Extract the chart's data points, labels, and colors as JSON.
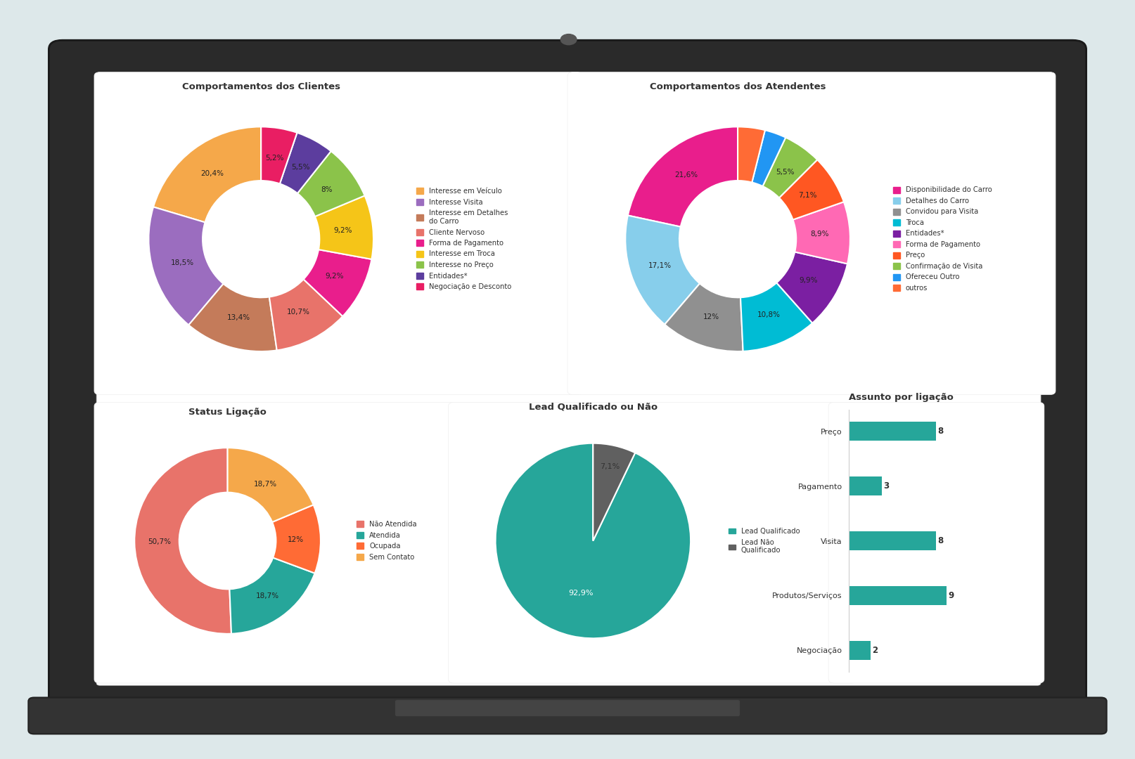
{
  "bg_color": "#dde8ea",
  "chart1_title": "Comportamentos dos Clientes",
  "chart1_values": [
    20.4,
    18.5,
    13.4,
    10.7,
    9.2,
    9.2,
    8.0,
    5.5,
    5.2
  ],
  "chart1_colors": [
    "#F5A84A",
    "#9B6DBF",
    "#C47B5A",
    "#E8736A",
    "#E91E8C",
    "#F5C518",
    "#8BC34A",
    "#5C3D9E",
    "#E91E63"
  ],
  "chart1_labels": [
    "20,4%",
    "18,5%",
    "13,4%",
    "10,7%",
    "9,2%",
    "9,2%",
    "8%",
    "5,5%",
    "5,2%"
  ],
  "chart1_legend": [
    {
      "label": "Interesse em Veículo",
      "color": "#F5A84A"
    },
    {
      "label": "Interesse Visita",
      "color": "#9B6DBF"
    },
    {
      "label": "Interesse em Detalhes\ndo Carro",
      "color": "#C47B5A"
    },
    {
      "label": "Cliente Nervoso",
      "color": "#E8736A"
    },
    {
      "label": "Forma de Pagamento",
      "color": "#E91E8C"
    },
    {
      "label": "Interesse em Troca",
      "color": "#F5C518"
    },
    {
      "label": "Interesse no Preço",
      "color": "#8BC34A"
    },
    {
      "label": "Entidades*",
      "color": "#5C3D9E"
    },
    {
      "label": "Negociação e Desconto",
      "color": "#E91E63"
    }
  ],
  "chart2_title": "Comportamentos dos Atendentes",
  "chart2_values": [
    21.6,
    17.1,
    12.0,
    10.8,
    9.9,
    8.9,
    7.1,
    5.5,
    3.1,
    3.9
  ],
  "chart2_colors": [
    "#E91E8C",
    "#87CEEB",
    "#909090",
    "#00BCD4",
    "#7B1FA2",
    "#FF69B4",
    "#FF5722",
    "#8BC34A",
    "#2196F3",
    "#FF6B35"
  ],
  "chart2_labels": [
    "21,6%",
    "17,1%",
    "12%",
    "10,8%",
    "9,9%",
    "8,9%",
    "7,1%",
    "5,5%",
    "",
    ""
  ],
  "chart2_legend": [
    {
      "label": "Disponibilidade do Carro",
      "color": "#E91E8C"
    },
    {
      "label": "Detalhes do Carro",
      "color": "#87CEEB"
    },
    {
      "label": "Convidou para Visita",
      "color": "#909090"
    },
    {
      "label": "Troca",
      "color": "#00BCD4"
    },
    {
      "label": "Entidades*",
      "color": "#7B1FA2"
    },
    {
      "label": "Forma de Pagamento",
      "color": "#FF69B4"
    },
    {
      "label": "Preço",
      "color": "#FF5722"
    },
    {
      "label": "Confirmação de Visita",
      "color": "#8BC34A"
    },
    {
      "label": "Ofereceu Outro",
      "color": "#2196F3"
    },
    {
      "label": "outros",
      "color": "#FF6B35"
    }
  ],
  "chart3_title": "Status Ligação",
  "chart3_values": [
    50.7,
    18.7,
    12.0,
    18.7
  ],
  "chart3_colors": [
    "#E8736A",
    "#26A69A",
    "#FF6B35",
    "#F5A84A"
  ],
  "chart3_labels": [
    "50,7%",
    "18,7%",
    "12%",
    "18,7%"
  ],
  "chart3_legend": [
    {
      "label": "Não Atendida",
      "color": "#E8736A"
    },
    {
      "label": "Atendida",
      "color": "#26A69A"
    },
    {
      "label": "Ocupada",
      "color": "#FF6B35"
    },
    {
      "label": "Sem Contato",
      "color": "#F5A84A"
    }
  ],
  "chart4_title": "Lead Qualificado ou Não",
  "chart4_values": [
    92.9,
    7.1
  ],
  "chart4_colors": [
    "#26A69A",
    "#606060"
  ],
  "chart4_labels": [
    "92,9%",
    "7,1%"
  ],
  "chart4_legend": [
    {
      "label": "Lead Qualificado",
      "color": "#26A69A"
    },
    {
      "label": "Lead Não\nQualificado",
      "color": "#606060"
    }
  ],
  "chart5_title": "Assunto por ligação",
  "chart5_categories": [
    "Preço",
    "Pagamento",
    "Visita",
    "Produtos/Serviços",
    "Negociação"
  ],
  "chart5_values": [
    8,
    3,
    8,
    9,
    2
  ],
  "chart5_bar_color": "#26A69A"
}
